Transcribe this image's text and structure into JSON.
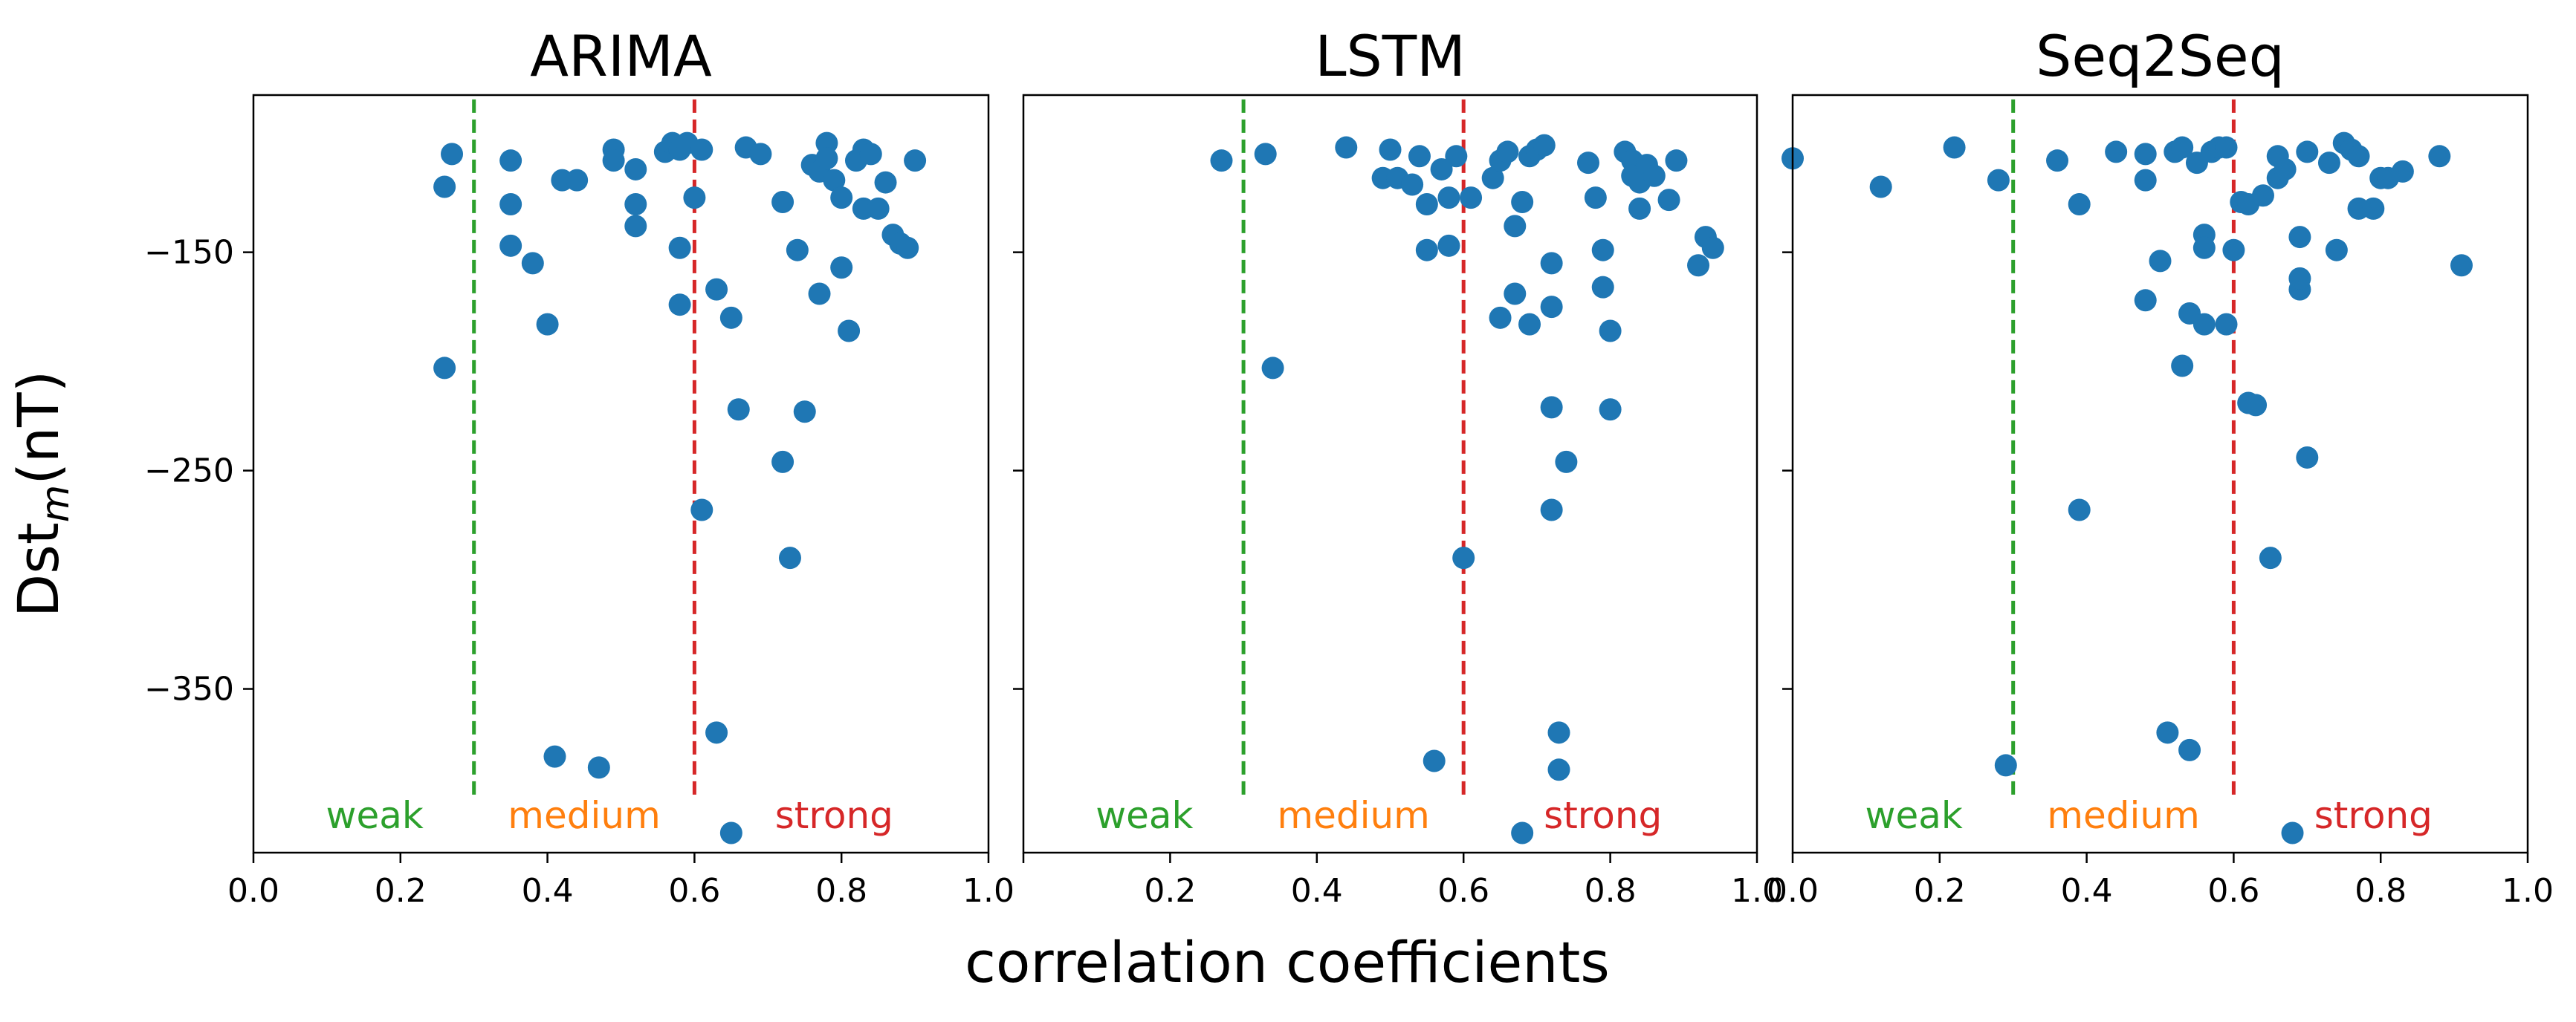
{
  "figure": {
    "ylabel_main": "Dst",
    "ylabel_sub": "m",
    "ylabel_unit": "(nT)",
    "xlabel": "correlation coefficients",
    "colors": {
      "point": "#1f77b4",
      "weak": "#2ca02c",
      "medium": "#ff7f0e",
      "strong": "#d62728",
      "axis": "#000000"
    },
    "threshold_labels": {
      "weak": "weak",
      "medium": "medium",
      "strong": "strong"
    }
  },
  "chart_data": [
    {
      "type": "scatter",
      "title": "ARIMA",
      "xlim": [
        0.0,
        1.0
      ],
      "ylim": [
        -425,
        -78
      ],
      "x_ticks": [
        0.0,
        0.2,
        0.4,
        0.6,
        0.8,
        1.0
      ],
      "x_tick_labels": [
        "0.0",
        "0.2",
        "0.4",
        "0.6",
        "0.8",
        "1.0"
      ],
      "y_ticks": [
        -150,
        -250,
        -350
      ],
      "y_tick_labels": [
        "−150",
        "−250",
        "−350"
      ],
      "thresholds": [
        0.3,
        0.6
      ],
      "grid": false,
      "points": [
        [
          0.27,
          -105
        ],
        [
          0.26,
          -120
        ],
        [
          0.26,
          -203
        ],
        [
          0.35,
          -108
        ],
        [
          0.35,
          -128
        ],
        [
          0.35,
          -147
        ],
        [
          0.38,
          -155
        ],
        [
          0.4,
          -183
        ],
        [
          0.42,
          -117
        ],
        [
          0.44,
          -117
        ],
        [
          0.41,
          -381
        ],
        [
          0.47,
          -386
        ],
        [
          0.49,
          -103
        ],
        [
          0.49,
          -108
        ],
        [
          0.52,
          -112
        ],
        [
          0.52,
          -128
        ],
        [
          0.52,
          -138
        ],
        [
          0.56,
          -104
        ],
        [
          0.57,
          -100
        ],
        [
          0.58,
          -103
        ],
        [
          0.59,
          -100
        ],
        [
          0.58,
          -148
        ],
        [
          0.58,
          -174
        ],
        [
          0.6,
          -125
        ],
        [
          0.61,
          -103
        ],
        [
          0.61,
          -268
        ],
        [
          0.63,
          -167
        ],
        [
          0.63,
          -370
        ],
        [
          0.65,
          -180
        ],
        [
          0.65,
          -416
        ],
        [
          0.66,
          -222
        ],
        [
          0.67,
          -102
        ],
        [
          0.69,
          -105
        ],
        [
          0.72,
          -127
        ],
        [
          0.72,
          -246
        ],
        [
          0.73,
          -290
        ],
        [
          0.74,
          -149
        ],
        [
          0.75,
          -223
        ],
        [
          0.76,
          -110
        ],
        [
          0.77,
          -113
        ],
        [
          0.77,
          -169
        ],
        [
          0.78,
          -100
        ],
        [
          0.78,
          -107
        ],
        [
          0.79,
          -117
        ],
        [
          0.8,
          -125
        ],
        [
          0.8,
          -157
        ],
        [
          0.81,
          -186
        ],
        [
          0.82,
          -108
        ],
        [
          0.83,
          -103
        ],
        [
          0.83,
          -130
        ],
        [
          0.84,
          -105
        ],
        [
          0.85,
          -130
        ],
        [
          0.86,
          -118
        ],
        [
          0.87,
          -142
        ],
        [
          0.88,
          -146
        ],
        [
          0.89,
          -148
        ],
        [
          0.9,
          -108
        ]
      ]
    },
    {
      "type": "scatter",
      "title": "LSTM",
      "xlim": [
        0.0,
        1.0
      ],
      "ylim": [
        -425,
        -78
      ],
      "x_ticks": [
        0.0,
        0.2,
        0.4,
        0.6,
        0.8,
        1.0
      ],
      "x_tick_labels": [
        "",
        "0.2",
        "0.4",
        "0.6",
        "0.8",
        "1.0"
      ],
      "y_ticks": [
        -150,
        -250,
        -350
      ],
      "y_tick_labels": [
        "",
        "",
        ""
      ],
      "thresholds": [
        0.3,
        0.6
      ],
      "grid": false,
      "points": [
        [
          0.27,
          -108
        ],
        [
          0.33,
          -105
        ],
        [
          0.34,
          -203
        ],
        [
          0.44,
          -102
        ],
        [
          0.49,
          -116
        ],
        [
          0.5,
          -103
        ],
        [
          0.51,
          -116
        ],
        [
          0.53,
          -119
        ],
        [
          0.54,
          -106
        ],
        [
          0.55,
          -128
        ],
        [
          0.55,
          -149
        ],
        [
          0.56,
          -383
        ],
        [
          0.57,
          -112
        ],
        [
          0.58,
          -125
        ],
        [
          0.58,
          -147
        ],
        [
          0.59,
          -106
        ],
        [
          0.6,
          -290
        ],
        [
          0.61,
          -125
        ],
        [
          0.64,
          -116
        ],
        [
          0.65,
          -108
        ],
        [
          0.65,
          -180
        ],
        [
          0.66,
          -104
        ],
        [
          0.67,
          -169
        ],
        [
          0.67,
          -138
        ],
        [
          0.68,
          -127
        ],
        [
          0.69,
          -106
        ],
        [
          0.68,
          -416
        ],
        [
          0.69,
          -183
        ],
        [
          0.7,
          -103
        ],
        [
          0.71,
          -101
        ],
        [
          0.72,
          -175
        ],
        [
          0.72,
          -155
        ],
        [
          0.72,
          -221
        ],
        [
          0.72,
          -268
        ],
        [
          0.73,
          -370
        ],
        [
          0.73,
          -387
        ],
        [
          0.74,
          -246
        ],
        [
          0.77,
          -109
        ],
        [
          0.78,
          -125
        ],
        [
          0.79,
          -166
        ],
        [
          0.79,
          -149
        ],
        [
          0.8,
          -222
        ],
        [
          0.8,
          -186
        ],
        [
          0.82,
          -104
        ],
        [
          0.83,
          -108
        ],
        [
          0.83,
          -115
        ],
        [
          0.84,
          -130
        ],
        [
          0.84,
          -118
        ],
        [
          0.85,
          -110
        ],
        [
          0.86,
          -115
        ],
        [
          0.88,
          -126
        ],
        [
          0.89,
          -108
        ],
        [
          0.92,
          -156
        ],
        [
          0.93,
          -143
        ],
        [
          0.94,
          -148
        ]
      ]
    },
    {
      "type": "scatter",
      "title": "Seq2Seq",
      "xlim": [
        0.0,
        1.0
      ],
      "ylim": [
        -425,
        -78
      ],
      "x_ticks": [
        0.0,
        0.2,
        0.4,
        0.6,
        0.8,
        1.0
      ],
      "x_tick_labels": [
        "0.0",
        "0.2",
        "0.4",
        "0.6",
        "0.8",
        "1.0"
      ],
      "y_ticks": [
        -150,
        -250,
        -350
      ],
      "y_tick_labels": [
        "",
        "",
        ""
      ],
      "thresholds": [
        0.3,
        0.6
      ],
      "grid": false,
      "points": [
        [
          0.0,
          -107
        ],
        [
          0.12,
          -120
        ],
        [
          0.22,
          -102
        ],
        [
          0.28,
          -117
        ],
        [
          0.29,
          -385
        ],
        [
          0.36,
          -108
        ],
        [
          0.39,
          -128
        ],
        [
          0.39,
          -268
        ],
        [
          0.44,
          -104
        ],
        [
          0.48,
          -172
        ],
        [
          0.48,
          -105
        ],
        [
          0.48,
          -117
        ],
        [
          0.5,
          -154
        ],
        [
          0.51,
          -370
        ],
        [
          0.52,
          -104
        ],
        [
          0.53,
          -102
        ],
        [
          0.53,
          -202
        ],
        [
          0.54,
          -378
        ],
        [
          0.54,
          -178
        ],
        [
          0.55,
          -109
        ],
        [
          0.56,
          -142
        ],
        [
          0.56,
          -148
        ],
        [
          0.56,
          -183
        ],
        [
          0.57,
          -104
        ],
        [
          0.58,
          -102
        ],
        [
          0.59,
          -102
        ],
        [
          0.59,
          -183
        ],
        [
          0.6,
          -149
        ],
        [
          0.61,
          -127
        ],
        [
          0.62,
          -128
        ],
        [
          0.62,
          -219
        ],
        [
          0.63,
          -220
        ],
        [
          0.64,
          -124
        ],
        [
          0.65,
          -290
        ],
        [
          0.66,
          -116
        ],
        [
          0.66,
          -106
        ],
        [
          0.67,
          -112
        ],
        [
          0.68,
          -416
        ],
        [
          0.69,
          -167
        ],
        [
          0.69,
          -143
        ],
        [
          0.69,
          -162
        ],
        [
          0.7,
          -104
        ],
        [
          0.7,
          -244
        ],
        [
          0.73,
          -109
        ],
        [
          0.74,
          -149
        ],
        [
          0.75,
          -100
        ],
        [
          0.76,
          -103
        ],
        [
          0.77,
          -106
        ],
        [
          0.77,
          -130
        ],
        [
          0.79,
          -130
        ],
        [
          0.8,
          -116
        ],
        [
          0.81,
          -116
        ],
        [
          0.83,
          -113
        ],
        [
          0.88,
          -106
        ],
        [
          0.91,
          -156
        ]
      ]
    }
  ]
}
